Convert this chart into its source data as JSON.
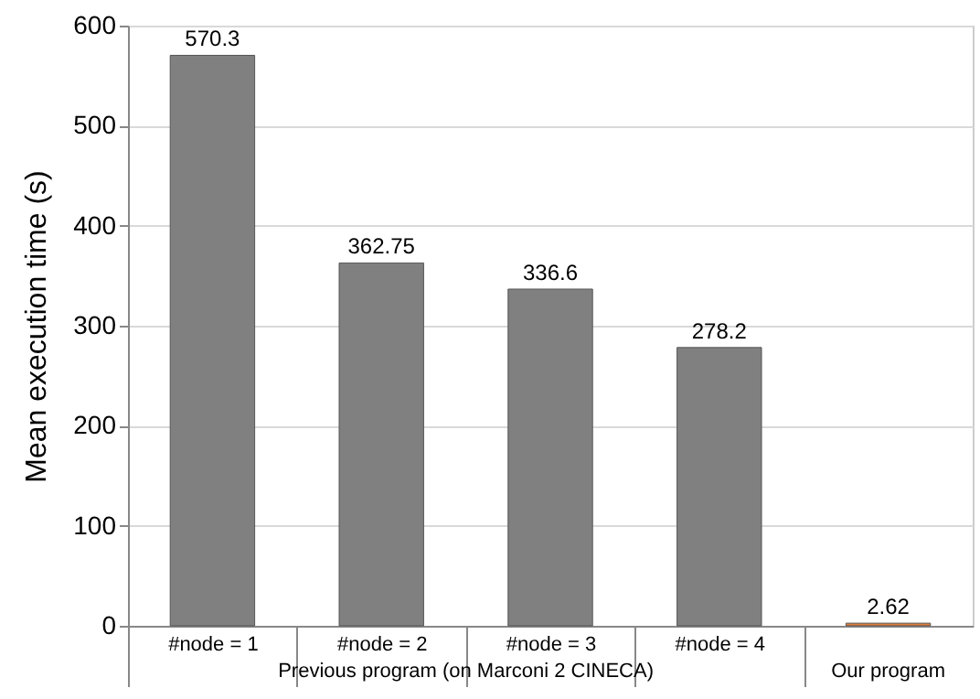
{
  "chart_data": {
    "type": "bar",
    "ylabel": "Mean execution time (s)",
    "categories": [
      "#node = 1",
      "#node = 2",
      "#node = 3",
      "#node = 4",
      null
    ],
    "values": [
      570.3,
      362.75,
      336.6,
      278.2,
      2.62
    ],
    "colors": [
      "#808080",
      "#808080",
      "#808080",
      "#808080",
      "#e07b39"
    ],
    "ylim": [
      0,
      600
    ],
    "yticks": [
      0,
      100,
      200,
      300,
      400,
      500,
      600
    ],
    "grid": "y",
    "data_labels": true,
    "annotations": [
      "Previous program (on Marconi 2 CINECA)",
      "Our program"
    ]
  }
}
